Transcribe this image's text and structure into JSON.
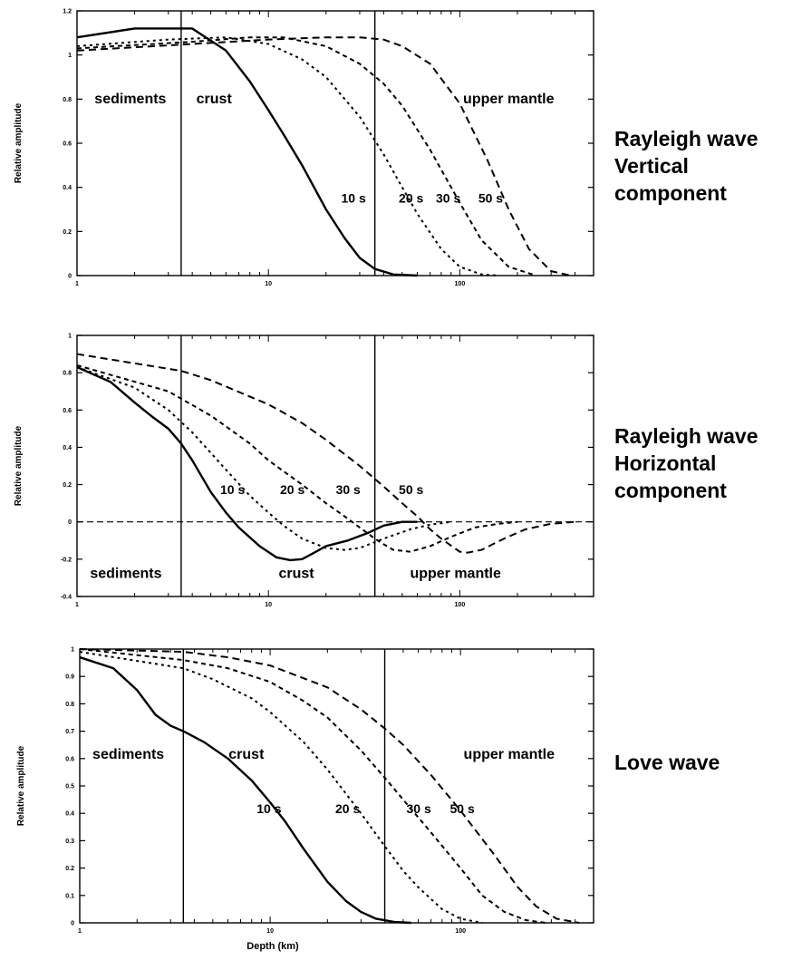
{
  "colors": {
    "ink": "#000000",
    "background": "#ffffff"
  },
  "xlabel": "Depth (km)",
  "chart_data": [
    {
      "type": "line",
      "side_title": [
        "Rayleigh wave",
        "Vertical",
        "component"
      ],
      "ylabel": "Relative amplitude",
      "xscale": "log",
      "xlim": [
        1,
        500
      ],
      "ylim": [
        0,
        1.2
      ],
      "yticks": [
        "0",
        "0.2",
        "0.4",
        "0.6",
        "0.8",
        "1",
        "1.2"
      ],
      "ytick_values": [
        0,
        0.2,
        0.4,
        0.6,
        0.8,
        1.0,
        1.2
      ],
      "xticks": [
        "1",
        "10",
        "100"
      ],
      "xtick_values": [
        1,
        10,
        100
      ],
      "boundaries_km": [
        3.5,
        36
      ],
      "region_labels": [
        {
          "text": "sediments",
          "x": 1.9,
          "y": 0.78
        },
        {
          "text": "crust",
          "x": 5.2,
          "y": 0.78
        },
        {
          "text": "upper mantle",
          "x": 180,
          "y": 0.78
        }
      ],
      "series": [
        {
          "name": "10 s",
          "style": "solid",
          "label_pos": [
            24,
            0.33
          ],
          "points": [
            [
              1,
              1.08
            ],
            [
              2,
              1.12
            ],
            [
              4,
              1.12
            ],
            [
              6,
              1.02
            ],
            [
              8,
              0.88
            ],
            [
              10,
              0.75
            ],
            [
              12,
              0.64
            ],
            [
              15,
              0.5
            ],
            [
              20,
              0.3
            ],
            [
              25,
              0.17
            ],
            [
              30,
              0.08
            ],
            [
              36,
              0.03
            ],
            [
              45,
              0.005
            ],
            [
              60,
              0
            ]
          ]
        },
        {
          "name": "20 s",
          "style": "dotted",
          "label_pos": [
            48,
            0.33
          ],
          "points": [
            [
              1,
              1.04
            ],
            [
              3,
              1.07
            ],
            [
              6,
              1.08
            ],
            [
              10,
              1.05
            ],
            [
              15,
              0.98
            ],
            [
              20,
              0.9
            ],
            [
              30,
              0.72
            ],
            [
              40,
              0.55
            ],
            [
              50,
              0.4
            ],
            [
              60,
              0.28
            ],
            [
              80,
              0.12
            ],
            [
              100,
              0.04
            ],
            [
              130,
              0.005
            ],
            [
              160,
              0
            ]
          ]
        },
        {
          "name": "30 s",
          "style": "dashed-short",
          "label_pos": [
            75,
            0.33
          ],
          "points": [
            [
              1,
              1.03
            ],
            [
              4,
              1.06
            ],
            [
              8,
              1.08
            ],
            [
              12,
              1.08
            ],
            [
              20,
              1.04
            ],
            [
              30,
              0.96
            ],
            [
              40,
              0.87
            ],
            [
              50,
              0.77
            ],
            [
              70,
              0.57
            ],
            [
              100,
              0.33
            ],
            [
              130,
              0.16
            ],
            [
              180,
              0.04
            ],
            [
              250,
              0
            ]
          ]
        },
        {
          "name": "50 s",
          "style": "dashed",
          "label_pos": [
            125,
            0.33
          ],
          "points": [
            [
              1,
              1.02
            ],
            [
              4,
              1.05
            ],
            [
              10,
              1.07
            ],
            [
              20,
              1.08
            ],
            [
              30,
              1.08
            ],
            [
              40,
              1.07
            ],
            [
              50,
              1.04
            ],
            [
              70,
              0.96
            ],
            [
              100,
              0.78
            ],
            [
              140,
              0.52
            ],
            [
              180,
              0.3
            ],
            [
              230,
              0.12
            ],
            [
              300,
              0.02
            ],
            [
              380,
              0
            ]
          ]
        }
      ]
    },
    {
      "type": "line",
      "side_title": [
        "Rayleigh wave",
        "Horizontal",
        "component"
      ],
      "ylabel": "Relative amplitude",
      "xscale": "log",
      "xlim": [
        1,
        500
      ],
      "ylim": [
        -0.4,
        1
      ],
      "yticks": [
        "-0.4",
        "-0.2",
        "0",
        "0.2",
        "0.4",
        "0.6",
        "0.8",
        "1"
      ],
      "ytick_values": [
        -0.4,
        -0.2,
        0,
        0.2,
        0.4,
        0.6,
        0.8,
        1.0
      ],
      "xticks": [
        "1",
        "10",
        "100"
      ],
      "xtick_values": [
        1,
        10,
        100
      ],
      "boundaries_km": [
        3.5,
        36
      ],
      "zero_line": true,
      "region_labels": [
        {
          "text": "sediments",
          "x": 1.8,
          "y": -0.3
        },
        {
          "text": "crust",
          "x": 14,
          "y": -0.3
        },
        {
          "text": "upper mantle",
          "x": 95,
          "y": -0.3
        }
      ],
      "series": [
        {
          "name": "10 s",
          "style": "solid",
          "label_pos": [
            5.6,
            0.15
          ],
          "points": [
            [
              1,
              0.83
            ],
            [
              1.5,
              0.75
            ],
            [
              2,
              0.64
            ],
            [
              2.5,
              0.56
            ],
            [
              3,
              0.5
            ],
            [
              3.5,
              0.42
            ],
            [
              4,
              0.33
            ],
            [
              5,
              0.16
            ],
            [
              6,
              0.05
            ],
            [
              7,
              -0.03
            ],
            [
              9,
              -0.13
            ],
            [
              11,
              -0.19
            ],
            [
              13,
              -0.205
            ],
            [
              15,
              -0.2
            ],
            [
              17,
              -0.17
            ],
            [
              20,
              -0.13
            ],
            [
              26,
              -0.1
            ],
            [
              33,
              -0.06
            ],
            [
              40,
              -0.02
            ],
            [
              50,
              0
            ],
            [
              60,
              0
            ]
          ]
        },
        {
          "name": "20 s",
          "style": "dotted",
          "label_pos": [
            11.5,
            0.15
          ],
          "points": [
            [
              1,
              0.83
            ],
            [
              2,
              0.72
            ],
            [
              3,
              0.6
            ],
            [
              4,
              0.48
            ],
            [
              5,
              0.37
            ],
            [
              6,
              0.28
            ],
            [
              8,
              0.14
            ],
            [
              10,
              0.05
            ],
            [
              12,
              -0.02
            ],
            [
              15,
              -0.09
            ],
            [
              20,
              -0.14
            ],
            [
              25,
              -0.15
            ],
            [
              30,
              -0.14
            ],
            [
              40,
              -0.09
            ],
            [
              55,
              -0.04
            ],
            [
              70,
              -0.015
            ],
            [
              90,
              0
            ]
          ]
        },
        {
          "name": "30 s",
          "style": "dashed-short",
          "label_pos": [
            22.5,
            0.15
          ],
          "points": [
            [
              1,
              0.84
            ],
            [
              3,
              0.7
            ],
            [
              5,
              0.57
            ],
            [
              8,
              0.42
            ],
            [
              10,
              0.33
            ],
            [
              15,
              0.2
            ],
            [
              20,
              0.1
            ],
            [
              25,
              0.03
            ],
            [
              30,
              -0.03
            ],
            [
              36,
              -0.09
            ],
            [
              40,
              -0.12
            ],
            [
              45,
              -0.15
            ],
            [
              55,
              -0.16
            ],
            [
              70,
              -0.13
            ],
            [
              90,
              -0.08
            ],
            [
              120,
              -0.03
            ],
            [
              160,
              -0.01
            ],
            [
              200,
              0
            ]
          ]
        },
        {
          "name": "50 s",
          "style": "dashed",
          "label_pos": [
            48,
            0.15
          ],
          "points": [
            [
              1,
              0.9
            ],
            [
              3.5,
              0.81
            ],
            [
              5,
              0.76
            ],
            [
              10,
              0.63
            ],
            [
              15,
              0.53
            ],
            [
              20,
              0.44
            ],
            [
              30,
              0.3
            ],
            [
              40,
              0.19
            ],
            [
              50,
              0.1
            ],
            [
              60,
              0.03
            ],
            [
              70,
              -0.04
            ],
            [
              80,
              -0.09
            ],
            [
              100,
              -0.16
            ],
            [
              110,
              -0.165
            ],
            [
              130,
              -0.15
            ],
            [
              170,
              -0.09
            ],
            [
              220,
              -0.04
            ],
            [
              300,
              -0.01
            ],
            [
              400,
              0
            ]
          ]
        }
      ]
    },
    {
      "type": "line",
      "side_title": [
        "Love wave"
      ],
      "ylabel": "Relative amplitude",
      "xscale": "log",
      "xlim": [
        1,
        500
      ],
      "ylim": [
        0,
        1
      ],
      "yticks": [
        "0",
        "0.1",
        "0.2",
        "0.3",
        "0.4",
        "0.5",
        "0.6",
        "0.7",
        "0.8",
        "0.9",
        "1"
      ],
      "ytick_values": [
        0,
        0.1,
        0.2,
        0.3,
        0.4,
        0.5,
        0.6,
        0.7,
        0.8,
        0.9,
        1.0
      ],
      "xticks": [
        "1",
        "10",
        "100"
      ],
      "xtick_values": [
        1,
        10,
        100
      ],
      "boundaries_km": [
        3.5,
        40
      ],
      "region_labels": [
        {
          "text": "sediments",
          "x": 1.8,
          "y": 0.6
        },
        {
          "text": "crust",
          "x": 7.5,
          "y": 0.6
        },
        {
          "text": "upper mantle",
          "x": 180,
          "y": 0.6
        }
      ],
      "series": [
        {
          "name": "10 s",
          "style": "solid",
          "label_pos": [
            8.5,
            0.4
          ],
          "points": [
            [
              1,
              0.97
            ],
            [
              1.5,
              0.93
            ],
            [
              2,
              0.85
            ],
            [
              2.5,
              0.76
            ],
            [
              3,
              0.72
            ],
            [
              3.5,
              0.7
            ],
            [
              4.5,
              0.66
            ],
            [
              6,
              0.6
            ],
            [
              8,
              0.52
            ],
            [
              10,
              0.44
            ],
            [
              12,
              0.37
            ],
            [
              15,
              0.27
            ],
            [
              20,
              0.15
            ],
            [
              25,
              0.08
            ],
            [
              30,
              0.04
            ],
            [
              36,
              0.015
            ],
            [
              45,
              0.003
            ],
            [
              55,
              0
            ]
          ]
        },
        {
          "name": "20 s",
          "style": "dotted",
          "label_pos": [
            22,
            0.4
          ],
          "points": [
            [
              1,
              0.99
            ],
            [
              3.5,
              0.93
            ],
            [
              5,
              0.89
            ],
            [
              8,
              0.82
            ],
            [
              10,
              0.77
            ],
            [
              15,
              0.66
            ],
            [
              20,
              0.56
            ],
            [
              30,
              0.4
            ],
            [
              40,
              0.28
            ],
            [
              50,
              0.19
            ],
            [
              60,
              0.13
            ],
            [
              80,
              0.05
            ],
            [
              100,
              0.015
            ],
            [
              130,
              0
            ]
          ]
        },
        {
          "name": "30 s",
          "style": "dashed-short",
          "label_pos": [
            52,
            0.4
          ],
          "points": [
            [
              1,
              1.0
            ],
            [
              3.5,
              0.96
            ],
            [
              6,
              0.93
            ],
            [
              10,
              0.88
            ],
            [
              15,
              0.81
            ],
            [
              20,
              0.75
            ],
            [
              30,
              0.63
            ],
            [
              40,
              0.53
            ],
            [
              50,
              0.45
            ],
            [
              70,
              0.33
            ],
            [
              100,
              0.2
            ],
            [
              130,
              0.1
            ],
            [
              170,
              0.04
            ],
            [
              220,
              0.01
            ],
            [
              280,
              0
            ]
          ]
        },
        {
          "name": "50 s",
          "style": "dashed",
          "label_pos": [
            88,
            0.4
          ],
          "points": [
            [
              1,
              1.0
            ],
            [
              3.5,
              0.99
            ],
            [
              6,
              0.97
            ],
            [
              10,
              0.94
            ],
            [
              20,
              0.86
            ],
            [
              30,
              0.78
            ],
            [
              40,
              0.71
            ],
            [
              50,
              0.65
            ],
            [
              70,
              0.54
            ],
            [
              100,
              0.41
            ],
            [
              150,
              0.25
            ],
            [
              200,
              0.13
            ],
            [
              250,
              0.06
            ],
            [
              320,
              0.015
            ],
            [
              420,
              0
            ]
          ]
        }
      ]
    }
  ]
}
